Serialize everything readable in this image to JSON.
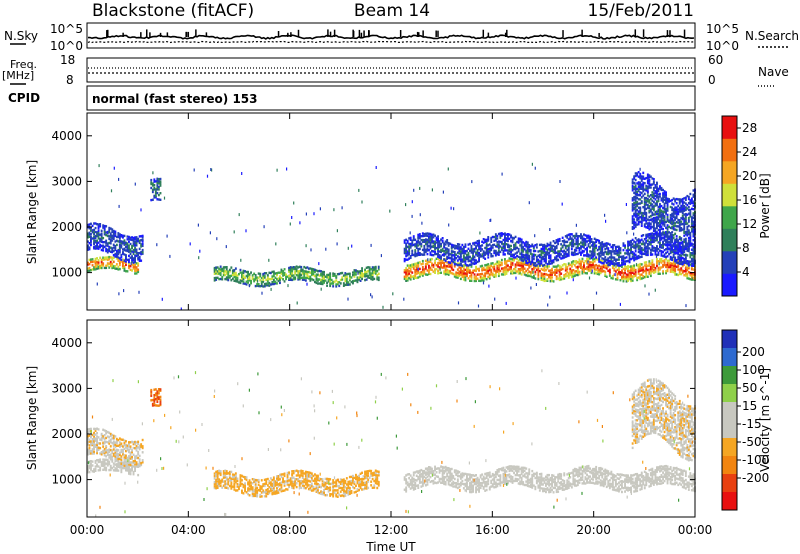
{
  "header": {
    "radar": "Blackstone (fitACF)",
    "beam": "Beam 14",
    "date": "15/Feb/2011"
  },
  "top_panels": {
    "nsky_label": "N.Sky",
    "nsearch_label": "N.Search",
    "exp_high": "10^5",
    "exp_low": "10^0",
    "freq_label": "Freq.",
    "freq_unit": "[MHz]",
    "freq_ticks": [
      "18",
      "8"
    ],
    "nave_label": "Nave",
    "nave_ticks": [
      "60",
      "0"
    ],
    "cpid_label": "CPID",
    "cpid_text": "normal (fast stereo) 153"
  },
  "colors": {
    "power_scale": [
      "#1a1aff",
      "#2440b8",
      "#2f7f5a",
      "#3fa64a",
      "#cfe03a",
      "#f5a623",
      "#f26f10",
      "#e81010"
    ],
    "velocity_scale": [
      "#2030b8",
      "#2e6ad0",
      "#3d9a3a",
      "#8fd04a",
      "#c8c8c0",
      "#c8c8c0",
      "#f5a623",
      "#f28510",
      "#e84010",
      "#e81010"
    ]
  },
  "chart_data": [
    {
      "type": "heatmap",
      "panel": "power",
      "xlabel": "Time UT",
      "ylabel": "Slant Range [km]",
      "x_ticks": [
        "00:00",
        "04:00",
        "08:00",
        "12:00",
        "16:00",
        "20:00",
        "00:00"
      ],
      "y_ticks": [
        1000,
        2000,
        3000,
        4000
      ],
      "xlim_hours": [
        0,
        24
      ],
      "ylim_km": [
        180,
        4500
      ],
      "colorbar": {
        "label": "Power [dB]",
        "ticks": [
          4,
          8,
          12,
          16,
          20,
          24,
          28
        ],
        "range": [
          0,
          30
        ]
      },
      "echo_bands": [
        {
          "t_start": 0.0,
          "t_end": 2.0,
          "range_center": 1150,
          "range_width": 280,
          "power": 22
        },
        {
          "t_start": 0.0,
          "t_end": 2.2,
          "range_center": 1650,
          "range_width": 600,
          "power": 6
        },
        {
          "t_start": 2.5,
          "t_end": 2.9,
          "range_center": 2700,
          "range_width": 500,
          "power": 8
        },
        {
          "t_start": 5.0,
          "t_end": 11.5,
          "range_center": 900,
          "range_width": 300,
          "power": 14
        },
        {
          "t_start": 12.5,
          "t_end": 24.0,
          "range_center": 1050,
          "range_width": 350,
          "power": 24
        },
        {
          "t_start": 12.5,
          "t_end": 24.0,
          "range_center": 1500,
          "range_width": 500,
          "power": 6
        },
        {
          "t_start": 21.5,
          "t_end": 24.0,
          "range_center": 2300,
          "range_width": 1200,
          "power": 6
        }
      ]
    },
    {
      "type": "heatmap",
      "panel": "velocity",
      "xlabel": "Time UT",
      "ylabel": "Slant Range [km]",
      "x_ticks": [
        "00:00",
        "04:00",
        "08:00",
        "12:00",
        "16:00",
        "20:00",
        "00:00"
      ],
      "y_ticks": [
        1000,
        2000,
        3000,
        4000
      ],
      "xlim_hours": [
        0,
        24
      ],
      "ylim_km": [
        180,
        4500
      ],
      "colorbar": {
        "label": "Velocity [m s^-1]",
        "ticks": [
          200,
          100,
          50,
          15,
          -15,
          -50,
          -100,
          -200
        ],
        "range": [
          -250,
          250
        ]
      },
      "echo_bands": [
        {
          "t_start": 0.0,
          "t_end": 2.0,
          "range_center": 1250,
          "range_width": 250,
          "velocity": 0
        },
        {
          "t_start": 0.0,
          "t_end": 2.2,
          "range_center": 1700,
          "range_width": 600,
          "velocity": -40
        },
        {
          "t_start": 2.5,
          "t_end": 2.9,
          "range_center": 2700,
          "range_width": 400,
          "velocity": -150
        },
        {
          "t_start": 5.0,
          "t_end": 11.5,
          "range_center": 900,
          "range_width": 400,
          "velocity": -60
        },
        {
          "t_start": 12.5,
          "t_end": 24.0,
          "range_center": 1000,
          "range_width": 400,
          "velocity": 0
        },
        {
          "t_start": 21.5,
          "t_end": 24.0,
          "range_center": 2300,
          "range_width": 1200,
          "velocity": -40
        }
      ]
    }
  ]
}
